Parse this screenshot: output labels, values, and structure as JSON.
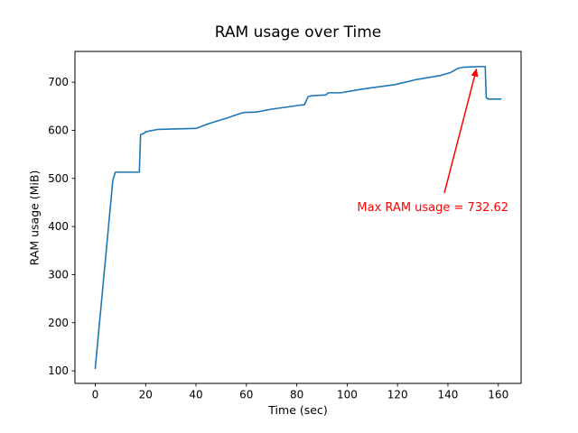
{
  "chart_data": {
    "type": "line",
    "title": "RAM usage over Time",
    "xlabel": "Time (sec)",
    "ylabel": "RAM usage (MiB)",
    "xlim": [
      -8.05,
      169.05
    ],
    "ylim": [
      74,
      764
    ],
    "xticks": [
      0,
      20,
      40,
      60,
      80,
      100,
      120,
      140,
      160
    ],
    "yticks": [
      100,
      200,
      300,
      400,
      500,
      600,
      700
    ],
    "grid": false,
    "legend": "none",
    "frame_color": "#000000",
    "tick_label_color": "#000000",
    "series": [
      {
        "name": "RAM usage",
        "color": "#1f77b4",
        "x": [
          0,
          7,
          8,
          17.5,
          18,
          19.5,
          20,
          25,
          40,
          44,
          47,
          52,
          57,
          59,
          64,
          70,
          81,
          83,
          84.5,
          86,
          91.5,
          92.5,
          97.5,
          104,
          109,
          119,
          127,
          137,
          141,
          144,
          146,
          150,
          153,
          154.8,
          155.2,
          156,
          161
        ],
        "y": [
          105,
          497,
          513,
          513,
          591,
          594,
          597,
          602,
          604,
          612,
          617,
          625,
          634,
          637,
          638,
          644,
          652,
          653,
          670,
          672,
          673.5,
          678,
          678,
          684,
          688,
          695,
          705,
          714,
          720,
          729,
          731,
          732,
          732.6,
          732.6,
          668,
          665,
          665
        ]
      }
    ],
    "max_value": 732.62,
    "annotation": {
      "text": "Max RAM usage = 732.62",
      "color": "#ff0000",
      "text_x": 134,
      "text_y": 441,
      "arrow_from_x": 138.6,
      "arrow_from_y": 470,
      "arrow_to_x": 151.3,
      "arrow_to_y": 727
    }
  }
}
